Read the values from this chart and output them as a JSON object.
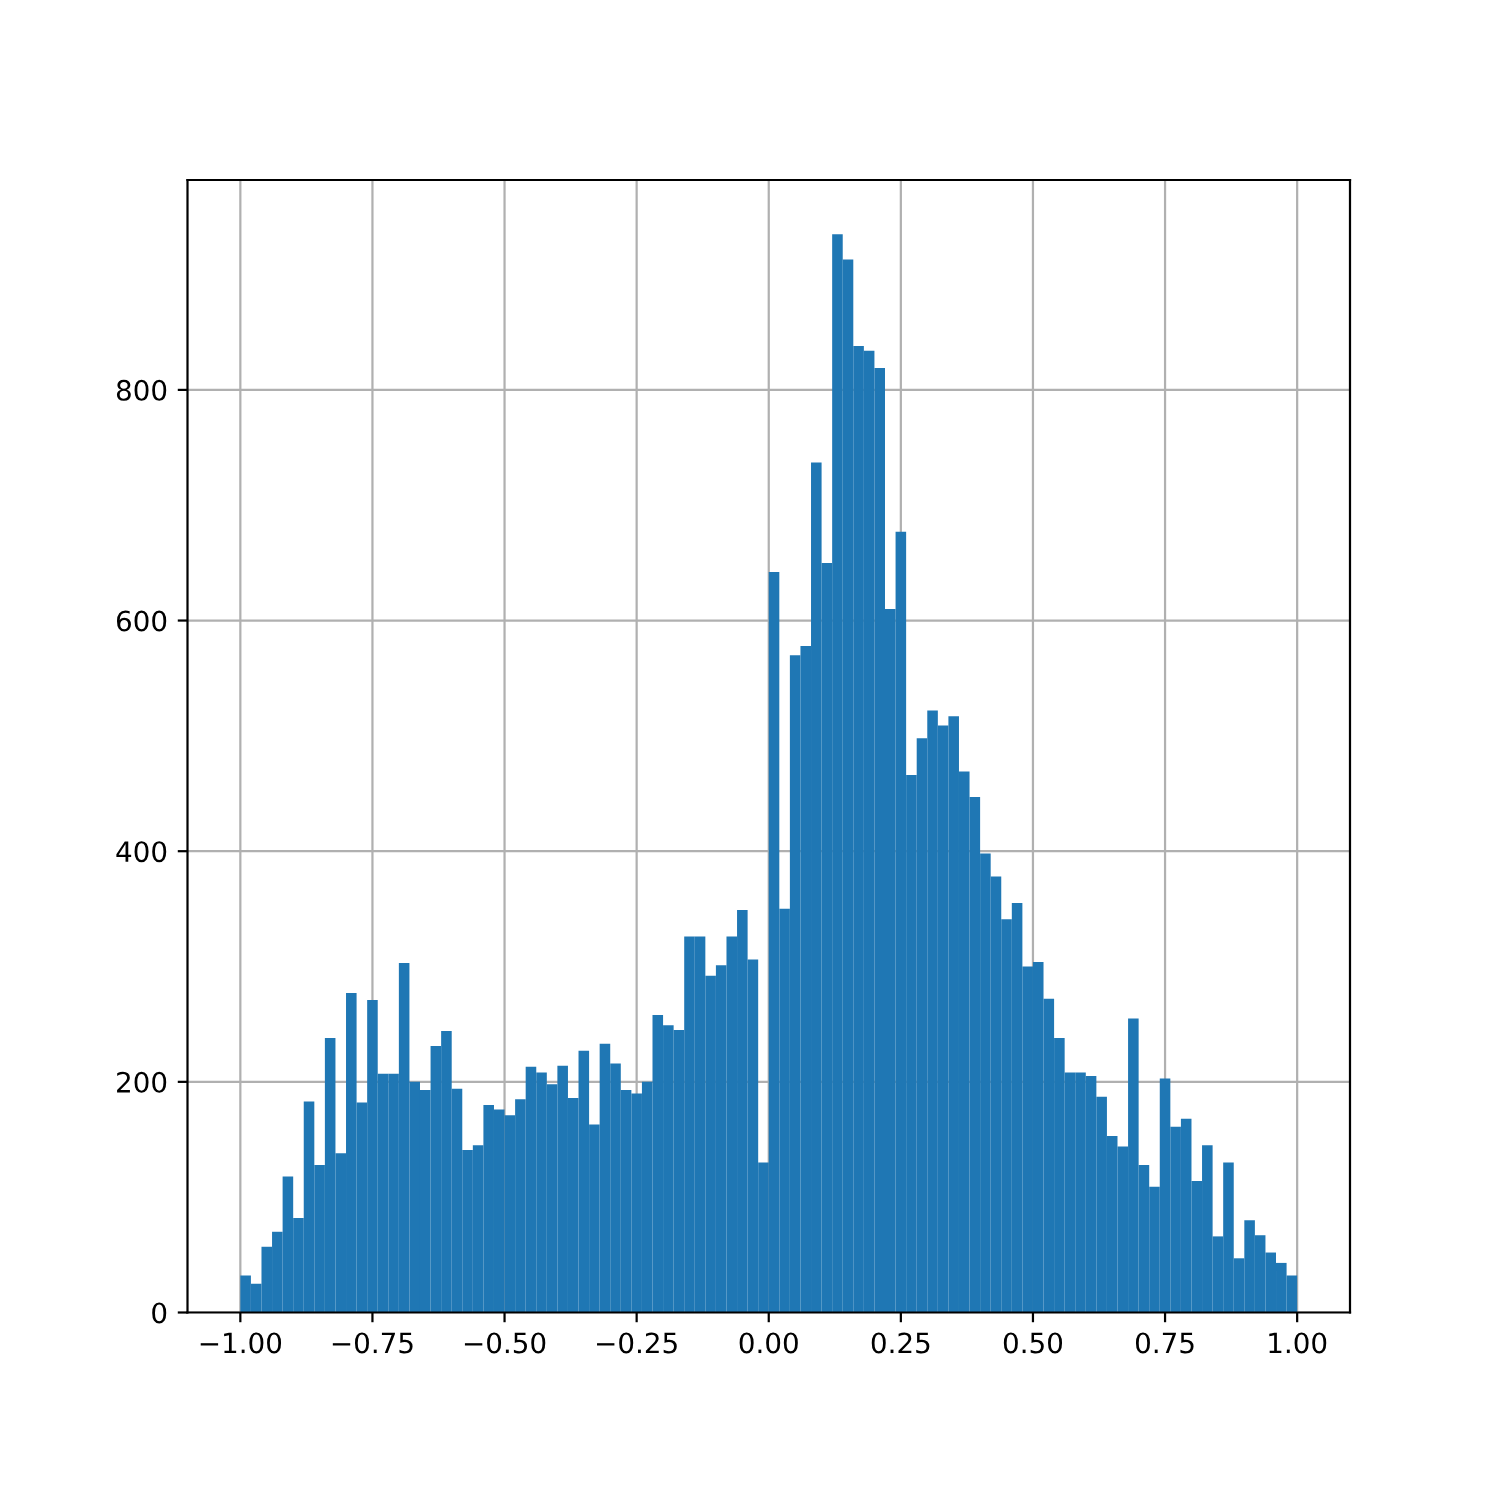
{
  "chart_data": {
    "type": "histogram",
    "color": "#1f77b4",
    "bins": [
      -1.0,
      -0.98,
      -0.96,
      -0.94,
      -0.92,
      -0.9,
      -0.88,
      -0.86,
      -0.84,
      -0.82,
      -0.8,
      -0.78,
      -0.76,
      -0.74,
      -0.72,
      -0.7,
      -0.68,
      -0.66,
      -0.64,
      -0.62,
      -0.6,
      -0.58,
      -0.56,
      -0.54,
      -0.52,
      -0.5,
      -0.48,
      -0.46,
      -0.44,
      -0.42,
      -0.4,
      -0.38,
      -0.36,
      -0.34,
      -0.32,
      -0.3,
      -0.28,
      -0.26,
      -0.24,
      -0.22,
      -0.2,
      -0.18,
      -0.16,
      -0.14,
      -0.12,
      -0.1,
      -0.08,
      -0.06,
      -0.04,
      -0.02,
      0.0,
      0.02,
      0.04,
      0.06,
      0.08,
      0.1,
      0.12,
      0.14,
      0.16,
      0.18,
      0.2,
      0.22,
      0.24,
      0.26,
      0.28,
      0.3,
      0.32,
      0.34,
      0.36,
      0.38,
      0.4,
      0.42,
      0.44,
      0.46,
      0.48,
      0.5,
      0.52,
      0.54,
      0.56,
      0.58,
      0.6,
      0.62,
      0.64,
      0.66,
      0.68,
      0.7,
      0.72,
      0.74,
      0.76,
      0.78,
      0.8,
      0.82,
      0.84,
      0.86,
      0.88,
      0.9,
      0.92,
      0.94,
      0.96,
      0.98,
      1.0
    ],
    "values": [
      32,
      25,
      57,
      70,
      118,
      82,
      183,
      128,
      238,
      138,
      277,
      182,
      271,
      207,
      207,
      303,
      200,
      193,
      231,
      244,
      194,
      141,
      145,
      180,
      176,
      171,
      185,
      213,
      208,
      198,
      214,
      186,
      227,
      163,
      233,
      216,
      193,
      190,
      200,
      258,
      249,
      245,
      326,
      326,
      292,
      301,
      326,
      349,
      306,
      130,
      642,
      350,
      570,
      578,
      737,
      650,
      935,
      913,
      838,
      834,
      819,
      610,
      677,
      466,
      498,
      522,
      509,
      517,
      469,
      447,
      398,
      378,
      341,
      355,
      300,
      304,
      272,
      238,
      208,
      208,
      205,
      187,
      153,
      144,
      255,
      128,
      109,
      203,
      161,
      168,
      114,
      145,
      66,
      130,
      47,
      80,
      67,
      52,
      43,
      32
    ],
    "xlim": [
      -1.1,
      1.1
    ],
    "xticks": [
      {
        "value": -1.0,
        "label": "−1.00"
      },
      {
        "value": -0.75,
        "label": "−0.75"
      },
      {
        "value": -0.5,
        "label": "−0.50"
      },
      {
        "value": -0.25,
        "label": "−0.25"
      },
      {
        "value": 0.0,
        "label": "0.00"
      },
      {
        "value": 0.25,
        "label": "0.25"
      },
      {
        "value": 0.5,
        "label": "0.50"
      },
      {
        "value": 0.75,
        "label": "0.75"
      },
      {
        "value": 1.0,
        "label": "1.00"
      }
    ],
    "ylim": [
      0,
      982
    ],
    "yticks": [
      0,
      200,
      400,
      600,
      800
    ],
    "grid": true
  }
}
